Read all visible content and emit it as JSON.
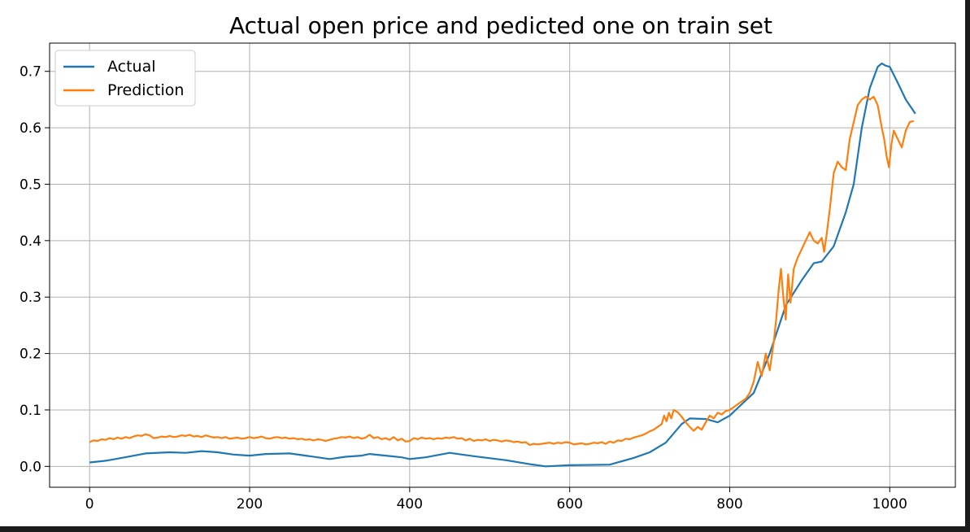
{
  "chart_data": {
    "type": "line",
    "title": "Actual open price and pedicted one on train set",
    "xlabel": "",
    "ylabel": "",
    "xlim": [
      -50,
      1082
    ],
    "ylim": [
      -0.037,
      0.75
    ],
    "xticks": [
      0,
      200,
      400,
      600,
      800,
      1000
    ],
    "yticks": [
      0.0,
      0.1,
      0.2,
      0.3,
      0.4,
      0.5,
      0.6,
      0.7
    ],
    "xtick_labels": [
      "0",
      "200",
      "400",
      "600",
      "800",
      "1000"
    ],
    "ytick_labels": [
      "0.0",
      "0.1",
      "0.2",
      "0.3",
      "0.4",
      "0.5",
      "0.6",
      "0.7"
    ],
    "grid": true,
    "legend_position": "top-left",
    "series": [
      {
        "name": "Actual",
        "color": "#1f77b4",
        "points": [
          [
            0,
            0.007
          ],
          [
            20,
            0.01
          ],
          [
            40,
            0.015
          ],
          [
            70,
            0.023
          ],
          [
            100,
            0.025
          ],
          [
            120,
            0.024
          ],
          [
            140,
            0.027
          ],
          [
            160,
            0.025
          ],
          [
            180,
            0.021
          ],
          [
            200,
            0.019
          ],
          [
            220,
            0.022
          ],
          [
            250,
            0.023
          ],
          [
            270,
            0.019
          ],
          [
            300,
            0.013
          ],
          [
            320,
            0.017
          ],
          [
            340,
            0.019
          ],
          [
            350,
            0.022
          ],
          [
            370,
            0.019
          ],
          [
            390,
            0.016
          ],
          [
            400,
            0.013
          ],
          [
            420,
            0.016
          ],
          [
            450,
            0.024
          ],
          [
            480,
            0.018
          ],
          [
            520,
            0.011
          ],
          [
            550,
            0.004
          ],
          [
            570,
            0.0
          ],
          [
            600,
            0.002
          ],
          [
            650,
            0.003
          ],
          [
            680,
            0.015
          ],
          [
            700,
            0.025
          ],
          [
            720,
            0.042
          ],
          [
            740,
            0.075
          ],
          [
            750,
            0.085
          ],
          [
            770,
            0.084
          ],
          [
            785,
            0.078
          ],
          [
            800,
            0.09
          ],
          [
            815,
            0.11
          ],
          [
            830,
            0.13
          ],
          [
            850,
            0.2
          ],
          [
            870,
            0.285
          ],
          [
            890,
            0.33
          ],
          [
            905,
            0.36
          ],
          [
            915,
            0.363
          ],
          [
            930,
            0.39
          ],
          [
            945,
            0.45
          ],
          [
            955,
            0.5
          ],
          [
            965,
            0.6
          ],
          [
            975,
            0.67
          ],
          [
            985,
            0.708
          ],
          [
            990,
            0.714
          ],
          [
            995,
            0.71
          ],
          [
            1000,
            0.708
          ],
          [
            1010,
            0.68
          ],
          [
            1020,
            0.65
          ],
          [
            1032,
            0.625
          ]
        ]
      },
      {
        "name": "Prediction",
        "color": "#ff7f0e",
        "points": [
          [
            0,
            0.043
          ],
          [
            5,
            0.046
          ],
          [
            10,
            0.045
          ],
          [
            15,
            0.048
          ],
          [
            20,
            0.047
          ],
          [
            25,
            0.05
          ],
          [
            30,
            0.048
          ],
          [
            35,
            0.051
          ],
          [
            40,
            0.049
          ],
          [
            45,
            0.052
          ],
          [
            50,
            0.05
          ],
          [
            55,
            0.053
          ],
          [
            60,
            0.055
          ],
          [
            65,
            0.054
          ],
          [
            70,
            0.057
          ],
          [
            75,
            0.055
          ],
          [
            80,
            0.05
          ],
          [
            85,
            0.051
          ],
          [
            90,
            0.053
          ],
          [
            95,
            0.052
          ],
          [
            100,
            0.054
          ],
          [
            105,
            0.052
          ],
          [
            110,
            0.053
          ],
          [
            115,
            0.055
          ],
          [
            120,
            0.054
          ],
          [
            125,
            0.056
          ],
          [
            130,
            0.053
          ],
          [
            135,
            0.054
          ],
          [
            140,
            0.052
          ],
          [
            145,
            0.055
          ],
          [
            150,
            0.053
          ],
          [
            155,
            0.051
          ],
          [
            160,
            0.052
          ],
          [
            165,
            0.05
          ],
          [
            170,
            0.052
          ],
          [
            175,
            0.049
          ],
          [
            180,
            0.05
          ],
          [
            185,
            0.051
          ],
          [
            190,
            0.049
          ],
          [
            195,
            0.05
          ],
          [
            200,
            0.052
          ],
          [
            205,
            0.05
          ],
          [
            210,
            0.051
          ],
          [
            215,
            0.053
          ],
          [
            220,
            0.05
          ],
          [
            225,
            0.049
          ],
          [
            230,
            0.051
          ],
          [
            235,
            0.052
          ],
          [
            240,
            0.05
          ],
          [
            245,
            0.051
          ],
          [
            250,
            0.049
          ],
          [
            255,
            0.05
          ],
          [
            260,
            0.048
          ],
          [
            265,
            0.049
          ],
          [
            270,
            0.047
          ],
          [
            275,
            0.048
          ],
          [
            280,
            0.046
          ],
          [
            285,
            0.048
          ],
          [
            290,
            0.047
          ],
          [
            295,
            0.045
          ],
          [
            300,
            0.047
          ],
          [
            305,
            0.049
          ],
          [
            310,
            0.05
          ],
          [
            315,
            0.052
          ],
          [
            320,
            0.051
          ],
          [
            325,
            0.053
          ],
          [
            330,
            0.05
          ],
          [
            335,
            0.052
          ],
          [
            340,
            0.049
          ],
          [
            345,
            0.051
          ],
          [
            350,
            0.056
          ],
          [
            355,
            0.05
          ],
          [
            360,
            0.052
          ],
          [
            365,
            0.048
          ],
          [
            370,
            0.05
          ],
          [
            375,
            0.047
          ],
          [
            380,
            0.052
          ],
          [
            385,
            0.046
          ],
          [
            390,
            0.049
          ],
          [
            395,
            0.044
          ],
          [
            400,
            0.045
          ],
          [
            405,
            0.05
          ],
          [
            410,
            0.048
          ],
          [
            415,
            0.051
          ],
          [
            420,
            0.049
          ],
          [
            425,
            0.05
          ],
          [
            430,
            0.048
          ],
          [
            435,
            0.05
          ],
          [
            440,
            0.049
          ],
          [
            445,
            0.051
          ],
          [
            450,
            0.05
          ],
          [
            455,
            0.052
          ],
          [
            460,
            0.049
          ],
          [
            465,
            0.05
          ],
          [
            470,
            0.046
          ],
          [
            475,
            0.049
          ],
          [
            480,
            0.045
          ],
          [
            485,
            0.047
          ],
          [
            490,
            0.046
          ],
          [
            495,
            0.048
          ],
          [
            500,
            0.045
          ],
          [
            505,
            0.047
          ],
          [
            510,
            0.046
          ],
          [
            515,
            0.044
          ],
          [
            520,
            0.046
          ],
          [
            525,
            0.045
          ],
          [
            530,
            0.043
          ],
          [
            535,
            0.044
          ],
          [
            540,
            0.042
          ],
          [
            545,
            0.043
          ],
          [
            550,
            0.038
          ],
          [
            555,
            0.04
          ],
          [
            560,
            0.039
          ],
          [
            565,
            0.04
          ],
          [
            570,
            0.041
          ],
          [
            575,
            0.042
          ],
          [
            580,
            0.04
          ],
          [
            585,
            0.042
          ],
          [
            590,
            0.041
          ],
          [
            595,
            0.043
          ],
          [
            600,
            0.042
          ],
          [
            605,
            0.039
          ],
          [
            610,
            0.04
          ],
          [
            615,
            0.041
          ],
          [
            620,
            0.039
          ],
          [
            625,
            0.04
          ],
          [
            630,
            0.042
          ],
          [
            635,
            0.041
          ],
          [
            640,
            0.043
          ],
          [
            645,
            0.04
          ],
          [
            650,
            0.044
          ],
          [
            655,
            0.042
          ],
          [
            660,
            0.046
          ],
          [
            665,
            0.045
          ],
          [
            670,
            0.049
          ],
          [
            675,
            0.048
          ],
          [
            680,
            0.051
          ],
          [
            685,
            0.053
          ],
          [
            690,
            0.055
          ],
          [
            695,
            0.058
          ],
          [
            700,
            0.062
          ],
          [
            705,
            0.065
          ],
          [
            710,
            0.07
          ],
          [
            715,
            0.075
          ],
          [
            718,
            0.09
          ],
          [
            721,
            0.08
          ],
          [
            724,
            0.095
          ],
          [
            727,
            0.085
          ],
          [
            730,
            0.1
          ],
          [
            735,
            0.096
          ],
          [
            740,
            0.088
          ],
          [
            745,
            0.078
          ],
          [
            750,
            0.07
          ],
          [
            755,
            0.063
          ],
          [
            760,
            0.07
          ],
          [
            765,
            0.065
          ],
          [
            770,
            0.078
          ],
          [
            775,
            0.09
          ],
          [
            780,
            0.085
          ],
          [
            785,
            0.095
          ],
          [
            790,
            0.092
          ],
          [
            795,
            0.098
          ],
          [
            800,
            0.1
          ],
          [
            805,
            0.105
          ],
          [
            810,
            0.11
          ],
          [
            815,
            0.115
          ],
          [
            820,
            0.12
          ],
          [
            825,
            0.13
          ],
          [
            830,
            0.15
          ],
          [
            835,
            0.185
          ],
          [
            840,
            0.16
          ],
          [
            845,
            0.2
          ],
          [
            850,
            0.17
          ],
          [
            855,
            0.22
          ],
          [
            858,
            0.26
          ],
          [
            861,
            0.31
          ],
          [
            864,
            0.35
          ],
          [
            867,
            0.3
          ],
          [
            870,
            0.26
          ],
          [
            873,
            0.34
          ],
          [
            876,
            0.29
          ],
          [
            880,
            0.35
          ],
          [
            885,
            0.37
          ],
          [
            890,
            0.385
          ],
          [
            895,
            0.4
          ],
          [
            900,
            0.415
          ],
          [
            905,
            0.4
          ],
          [
            910,
            0.395
          ],
          [
            915,
            0.405
          ],
          [
            918,
            0.38
          ],
          [
            921,
            0.41
          ],
          [
            925,
            0.455
          ],
          [
            930,
            0.52
          ],
          [
            935,
            0.54
          ],
          [
            940,
            0.53
          ],
          [
            945,
            0.525
          ],
          [
            950,
            0.58
          ],
          [
            955,
            0.61
          ],
          [
            960,
            0.64
          ],
          [
            965,
            0.65
          ],
          [
            970,
            0.655
          ],
          [
            975,
            0.65
          ],
          [
            980,
            0.655
          ],
          [
            985,
            0.64
          ],
          [
            990,
            0.6
          ],
          [
            993,
            0.58
          ],
          [
            996,
            0.55
          ],
          [
            999,
            0.53
          ],
          [
            1002,
            0.57
          ],
          [
            1005,
            0.595
          ],
          [
            1010,
            0.58
          ],
          [
            1015,
            0.565
          ],
          [
            1020,
            0.595
          ],
          [
            1025,
            0.61
          ],
          [
            1030,
            0.612
          ]
        ]
      }
    ]
  }
}
